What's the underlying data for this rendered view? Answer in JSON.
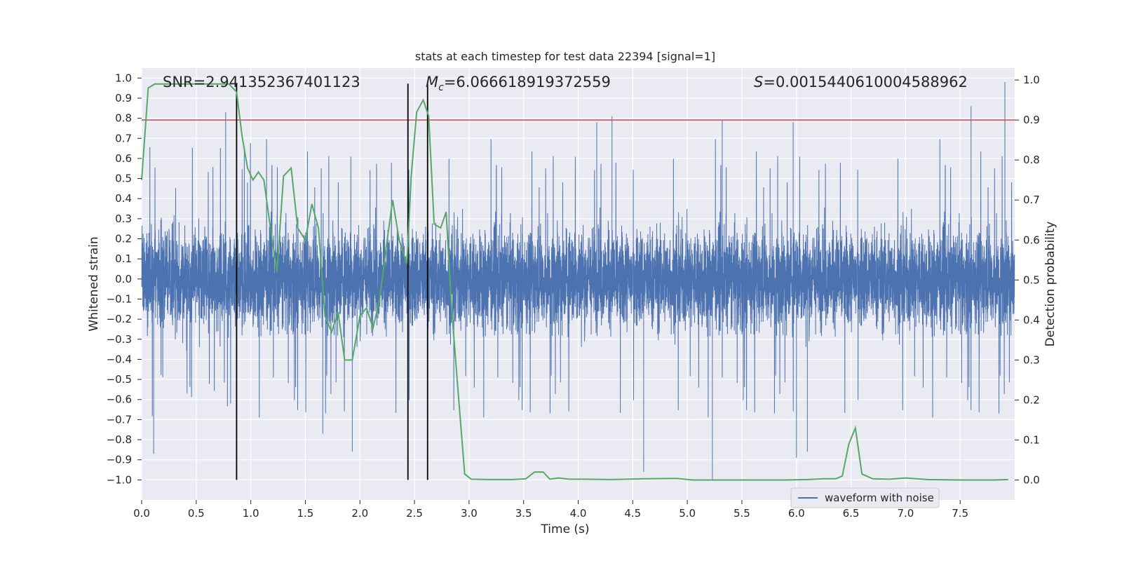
{
  "chart_data": {
    "type": "line",
    "title": "stats at each timestep for test data 22394 [signal=1]",
    "xlabel": "Time (s)",
    "ylabel_left": "Whitened strain",
    "ylabel_right": "Detection probability",
    "xlim": [
      0.0,
      8.0
    ],
    "ylim_left": [
      -1.1,
      1.05
    ],
    "ylim_right": [
      -0.05,
      1.03
    ],
    "x_ticks": [
      "0.0",
      "0.5",
      "1.0",
      "1.5",
      "2.0",
      "2.5",
      "3.0",
      "3.5",
      "4.0",
      "4.5",
      "5.0",
      "5.5",
      "6.0",
      "6.5",
      "7.0",
      "7.5"
    ],
    "y_ticks_left": [
      "1.0",
      "0.9",
      "0.8",
      "0.7",
      "0.6",
      "0.5",
      "0.4",
      "0.3",
      "0.2",
      "0.1",
      "0.0",
      "−0.1",
      "−0.2",
      "−0.3",
      "−0.4",
      "−0.5",
      "−0.6",
      "−0.7",
      "−0.8",
      "−0.9",
      "−1.0"
    ],
    "y_ticks_right": [
      "1.0",
      "0.9",
      "0.8",
      "0.7",
      "0.6",
      "0.5",
      "0.4",
      "0.3",
      "0.2",
      "0.1",
      "0.0"
    ],
    "grid": true,
    "legend_position": "lower-right",
    "annotations": {
      "snr": "SNR=2.941352367401123",
      "mc_symbol": "M",
      "mc_sub": "c",
      "mc_value": "=6.066618919372559",
      "s_symbol": "S",
      "s_value": "=0.0015440610004588962"
    },
    "vertical_lines_x": [
      0.87,
      2.44,
      2.62
    ],
    "threshold_probability": 0.9,
    "waveform": {
      "name": "waveform with noise",
      "color": "#4c72b0",
      "samples": 8192,
      "envelope_positive": 0.45,
      "envelope_negative": -0.45,
      "peaks": [
        {
          "x": 0.77,
          "y": 0.83
        },
        {
          "x": 0.87,
          "y": -0.74
        },
        {
          "x": 0.11,
          "y": -0.87
        },
        {
          "x": 4.17,
          "y": 0.78
        },
        {
          "x": 4.31,
          "y": 0.81
        },
        {
          "x": 4.6,
          "y": -0.96
        },
        {
          "x": 5.23,
          "y": -1.0
        },
        {
          "x": 5.32,
          "y": 0.79
        },
        {
          "x": 5.97,
          "y": 0.78
        },
        {
          "x": 6.0,
          "y": -0.89
        },
        {
          "x": 6.1,
          "y": -0.86
        },
        {
          "x": 7.6,
          "y": 0.86
        },
        {
          "x": 7.91,
          "y": 0.98
        },
        {
          "x": 1.93,
          "y": -0.86
        },
        {
          "x": 1.66,
          "y": -0.77
        }
      ]
    },
    "probability": {
      "color": "#55a868",
      "x": [
        0.0,
        0.06,
        0.12,
        0.2,
        0.3,
        0.4,
        0.5,
        0.6,
        0.7,
        0.8,
        0.87,
        0.92,
        0.97,
        1.02,
        1.07,
        1.12,
        1.17,
        1.24,
        1.3,
        1.37,
        1.43,
        1.5,
        1.56,
        1.62,
        1.68,
        1.74,
        1.8,
        1.86,
        1.93,
        2.0,
        2.06,
        2.12,
        2.18,
        2.24,
        2.3,
        2.36,
        2.43,
        2.47,
        2.52,
        2.58,
        2.63,
        2.68,
        2.74,
        2.79,
        2.84,
        2.9,
        2.96,
        3.02,
        3.2,
        3.4,
        3.52,
        3.6,
        3.68,
        3.74,
        3.82,
        3.92,
        4.05,
        4.3,
        4.6,
        4.9,
        5.05,
        5.3,
        5.6,
        5.9,
        6.1,
        6.25,
        6.36,
        6.42,
        6.48,
        6.54,
        6.6,
        6.7,
        6.85,
        7.0,
        7.2,
        7.5,
        7.8,
        7.94
      ],
      "y": [
        0.75,
        0.98,
        0.99,
        0.99,
        0.99,
        0.99,
        0.99,
        0.99,
        0.99,
        0.99,
        0.97,
        0.86,
        0.78,
        0.75,
        0.77,
        0.75,
        0.65,
        0.52,
        0.76,
        0.78,
        0.63,
        0.6,
        0.69,
        0.63,
        0.41,
        0.37,
        0.42,
        0.3,
        0.3,
        0.41,
        0.43,
        0.38,
        0.45,
        0.58,
        0.7,
        0.6,
        0.54,
        0.76,
        0.92,
        0.95,
        0.91,
        0.64,
        0.63,
        0.67,
        0.43,
        0.22,
        0.015,
        0.002,
        0.001,
        0.001,
        0.003,
        0.02,
        0.02,
        0.002,
        0.005,
        0.002,
        0.002,
        0.001,
        0.003,
        0.004,
        0.0,
        0.0,
        0.0,
        0.0,
        0.001,
        0.003,
        0.003,
        0.01,
        0.09,
        0.13,
        0.015,
        0.003,
        0.002,
        0.005,
        0.001,
        0.0,
        0.0,
        0.001
      ]
    }
  }
}
